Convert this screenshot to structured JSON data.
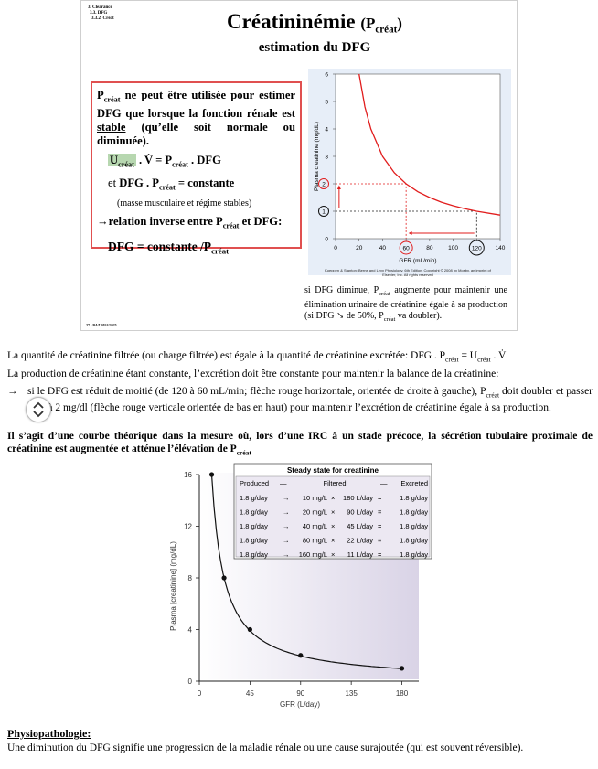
{
  "slide": {
    "breadcrumb": [
      "3. Clearance",
      "3.3. DFG",
      "3.3.2. Créat"
    ],
    "title": "Créatininémie",
    "title_paren_open": "(P",
    "title_paren_sub": "créat",
    "title_paren_close": ")",
    "subtitle": "estimation du DFG",
    "box": {
      "intro_p": "P",
      "intro_sub": "créat",
      "intro_a": " ne peut être utilisée pour estimer DFG que lorsque la fonction rénale est ",
      "intro_u": "stable",
      "intro_b": " (qu’elle soit normale ou diminuée).",
      "eq1_u": "U",
      "eq1_usub": "créat",
      "eq1_a": " . V̇ = P",
      "eq1_psub": "créat",
      "eq1_b": " . DFG",
      "eq2_pre": "et ",
      "eq2_a": "DFG . P",
      "eq2_sub": "créat",
      "eq2_b": " = constante",
      "note": "(masse musculaire et régime stables)",
      "rel_a": "→relation inverse entre P",
      "rel_sub": "créat",
      "rel_b": " et DFG:",
      "final_a": "DFG = constante /P",
      "final_sub": "créat"
    },
    "credit": "Koeppen & Stanton: Berne and Levy Physiology, 6th Edition. Copyright © 2008 by Mosby, an imprint of Elsevier, Inc. All rights reserved",
    "caption_a": "si DFG diminue, P",
    "caption_sub1": "créat",
    "caption_b": " augmente pour maintenir une élimination urinaire de créatinine égale à sa production (si DFG ↘ de 50%, P",
    "caption_sub2": "créat",
    "caption_c": " va doubler).",
    "footer": "27 - BAZ 2024/2025"
  },
  "text": {
    "p1_a": "La quantité de créatinine filtrée (ou charge filtrée) est égale à la quantité de créatinine excrétée: DFG . P",
    "p1_sub1": "créat",
    "p1_b": " = U",
    "p1_sub2": "créat",
    "p1_c": " . V̇",
    "p2": "La production de créatinine étant constante, l’excrétion doit être constante pour maintenir la balance de la créatinine:",
    "p3_arrow": "→",
    "p3_a": "si le DFG est réduit de moitié (de 120 à 60 mL/min; flèche rouge horizontale, orientée de droite à gauche), P",
    "p3_sub": "créat",
    "p3_b": " doit doubler et passer de 1 à 2 mg/dl (flèche rouge verticale orientée de bas en haut) pour maintenir l’excrétion de créatinine égale à sa production.",
    "p4_a": "Il s’agit d’une courbe théorique dans la mesure où, lors d’une IRC à un stade précoce, la sécrétion tubulaire proximale de créatinine est augmentée et atténue l’élévation de P",
    "p4_sub": "créat",
    "phys_title": "Physiopathologie:",
    "phys_text": "Une diminution du DFG signifie une progression de la maladie rénale ou une cause surajoutée (qui est souvent réversible)."
  },
  "chart_data": [
    {
      "type": "line",
      "title": "",
      "xlabel": "GFR (mL/min)",
      "ylabel": "Plasma creatinine (mg/dL)",
      "xlim": [
        0,
        140
      ],
      "ylim": [
        0,
        6
      ],
      "xticks": [
        0,
        20,
        40,
        60,
        80,
        100,
        120,
        140
      ],
      "yticks": [
        0,
        1,
        2,
        3,
        4,
        5,
        6
      ],
      "grid": false,
      "x": [
        20,
        25,
        30,
        40,
        50,
        60,
        70,
        80,
        90,
        100,
        110,
        120,
        140
      ],
      "y": [
        6.0,
        4.8,
        4.0,
        3.0,
        2.4,
        2.0,
        1.71,
        1.5,
        1.33,
        1.2,
        1.09,
        1.0,
        0.86
      ],
      "circled_labels": [
        "1",
        "2",
        "60",
        "120"
      ],
      "series_color": "#e11d1d"
    },
    {
      "type": "line",
      "title": "",
      "xlabel": "GFR (L/day)",
      "ylabel": "Plasma [creatinine] (mg/dL)",
      "xlim": [
        0,
        195
      ],
      "ylim": [
        0,
        16
      ],
      "xticks": [
        0,
        45,
        90,
        135,
        180
      ],
      "yticks": [
        0,
        4,
        8,
        12,
        16
      ],
      "x": [
        11,
        22,
        45,
        90,
        180
      ],
      "y": [
        16,
        8,
        4,
        2,
        1
      ],
      "table": {
        "title": "Steady state for creatinine",
        "headers": [
          "Produced",
          "Filtered",
          "Excreted"
        ],
        "rows": [
          [
            "1.8 g/day",
            "10 mg/L",
            "180 L/day",
            "1.8 g/day"
          ],
          [
            "1.8 g/day",
            "20 mg/L",
            "90 L/day",
            "1.8 g/day"
          ],
          [
            "1.8 g/day",
            "40 mg/L",
            "45 L/day",
            "1.8 g/day"
          ],
          [
            "1.8 g/day",
            "80 mg/L",
            "22 L/day",
            "1.8 g/day"
          ],
          [
            "1.8 g/day",
            "160 mg/L",
            "11 L/day",
            "1.8 g/day"
          ]
        ]
      },
      "background_color": "#d9d3e6",
      "line_color": "#111111"
    }
  ]
}
